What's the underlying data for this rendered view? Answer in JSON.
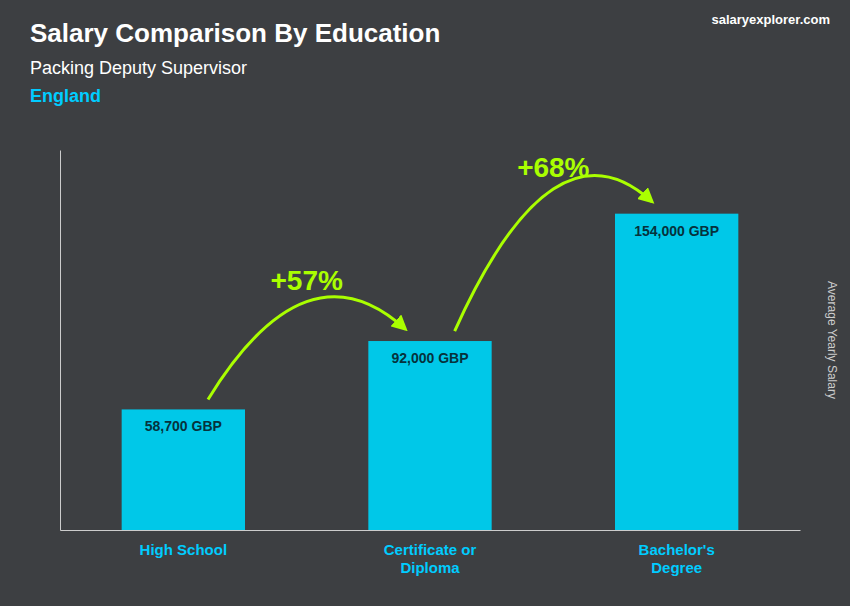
{
  "chart_data": {
    "type": "bar",
    "title": "Salary Comparison By Education",
    "subtitle": "Packing Deputy Supervisor",
    "annotations": [
      "England",
      "salaryexplorer.com"
    ],
    "y_label": "Average Yearly Salary",
    "categories": [
      "High School",
      "Certificate or\nDiploma",
      "Bachelor's\nDegree"
    ],
    "values": [
      58700,
      92000,
      154000
    ],
    "value_labels": [
      "58,700 GBP",
      "92,000 GBP",
      "154,000 GBP"
    ],
    "data_labels": true,
    "change_labels": [
      "+57%",
      "+68%"
    ],
    "color": "#00c8e8",
    "ylim": [
      0,
      185000
    ],
    "yticks": [],
    "tick_labels": "x",
    "grid": false
  }
}
